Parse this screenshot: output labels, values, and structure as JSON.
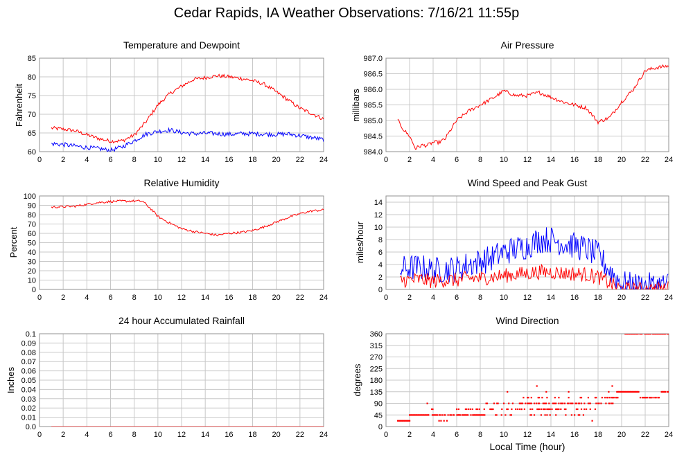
{
  "title": "Cedar Rapids, IA Weather Observations: 7/16/21 11:55p",
  "colors": {
    "red": "#ff0000",
    "blue": "#0000ff",
    "grid": "#c8c8c8",
    "frame": "#909090",
    "bg": "#ffffff"
  },
  "chart_data": [
    {
      "id": "temp",
      "type": "line",
      "title": "Temperature and Dewpoint",
      "ylabel": "Fahrenheit",
      "xlabel": "",
      "xlim": [
        0,
        24
      ],
      "ylim": [
        60,
        85
      ],
      "yticks": [
        "60",
        "65",
        "70",
        "75",
        "80",
        "85"
      ],
      "xticks": [
        "0",
        "2",
        "4",
        "6",
        "8",
        "10",
        "12",
        "14",
        "16",
        "18",
        "20",
        "22",
        "24"
      ],
      "grid": true,
      "series": [
        {
          "color": "red",
          "x": [
            1,
            2,
            3,
            4,
            5,
            6,
            7,
            8,
            9,
            10,
            11,
            12,
            13,
            14,
            15,
            16,
            17,
            18,
            19,
            20,
            21,
            22,
            23,
            24
          ],
          "y": [
            66.3,
            66,
            65.6,
            64.5,
            63.5,
            62.8,
            62.9,
            64.4,
            68,
            72.5,
            75.5,
            77.5,
            79.3,
            79.8,
            80.3,
            80,
            79.6,
            79,
            78,
            76,
            73.8,
            71.6,
            70.2,
            68.7
          ],
          "noise": 0.5
        },
        {
          "color": "blue",
          "x": [
            1,
            2,
            3,
            4,
            5,
            6,
            7,
            8,
            9,
            10,
            11,
            12,
            13,
            14,
            15,
            16,
            17,
            18,
            19,
            20,
            21,
            22,
            23,
            24
          ],
          "y": [
            62.1,
            61.9,
            61.5,
            61.1,
            60.8,
            60.3,
            61.3,
            62.9,
            64.7,
            65.4,
            65.8,
            65.1,
            64.8,
            64.9,
            64.8,
            64.6,
            64.8,
            64.8,
            64.7,
            64.6,
            64.7,
            64.3,
            63.8,
            63.2
          ],
          "noise": 0.6
        }
      ]
    },
    {
      "id": "pressure",
      "type": "line",
      "title": "Air Pressure",
      "ylabel": "millibars",
      "xlabel": "",
      "xlim": [
        0,
        24
      ],
      "ylim": [
        984.0,
        987.0
      ],
      "yticks": [
        "984.0",
        "984.5",
        "985.0",
        "985.5",
        "986.0",
        "986.5",
        "987.0"
      ],
      "xticks": [
        "0",
        "2",
        "4",
        "6",
        "8",
        "10",
        "12",
        "14",
        "16",
        "18",
        "20",
        "22",
        "24"
      ],
      "grid": true,
      "series": [
        {
          "color": "red",
          "x": [
            1,
            1.5,
            2,
            2.5,
            3,
            3.5,
            4,
            4.5,
            5,
            6,
            7,
            8,
            9,
            10,
            11,
            12,
            13,
            14,
            15,
            16,
            17,
            18,
            19,
            20,
            21,
            22,
            23,
            24
          ],
          "y": [
            985.0,
            984.7,
            984.5,
            984.1,
            984.2,
            984.2,
            984.3,
            984.3,
            984.4,
            985.0,
            985.3,
            985.5,
            985.7,
            985.95,
            985.8,
            985.8,
            985.9,
            985.75,
            985.6,
            985.5,
            985.4,
            984.95,
            985.1,
            985.6,
            986.0,
            986.6,
            986.7,
            986.75
          ],
          "noise": 0.06
        }
      ]
    },
    {
      "id": "humidity",
      "type": "line",
      "title": "Relative Humidity",
      "ylabel": "Percent",
      "xlabel": "",
      "xlim": [
        0,
        24
      ],
      "ylim": [
        0,
        100
      ],
      "yticks": [
        "0",
        "10",
        "20",
        "30",
        "40",
        "50",
        "60",
        "70",
        "80",
        "90",
        "100"
      ],
      "xticks": [
        "0",
        "2",
        "4",
        "6",
        "8",
        "10",
        "12",
        "14",
        "16",
        "18",
        "20",
        "22",
        "24"
      ],
      "grid": true,
      "series": [
        {
          "color": "red",
          "x": [
            1,
            2,
            3,
            4,
            5,
            6,
            7,
            8,
            8.7,
            9.5,
            10,
            11,
            12,
            13,
            14,
            15,
            16,
            17,
            18,
            19,
            20,
            21,
            22,
            23,
            24
          ],
          "y": [
            88,
            88.5,
            89,
            91,
            93,
            94,
            94.5,
            94.5,
            94.5,
            85,
            78,
            71,
            65,
            62,
            60,
            58,
            60,
            61,
            63,
            67,
            72,
            77,
            81,
            84,
            85
          ],
          "noise": 1.2
        }
      ]
    },
    {
      "id": "wind",
      "type": "line",
      "title": "Wind Speed and Peak Gust",
      "ylabel": "miles/hour",
      "xlabel": "",
      "xlim": [
        0,
        24
      ],
      "ylim": [
        0,
        15
      ],
      "yticks": [
        "0",
        "2",
        "4",
        "6",
        "8",
        "10",
        "12",
        "14"
      ],
      "xticks": [
        "0",
        "2",
        "4",
        "6",
        "8",
        "10",
        "12",
        "14",
        "16",
        "18",
        "20",
        "22",
        "24"
      ],
      "grid": true,
      "series": [
        {
          "color": "blue",
          "x": [
            1.2,
            2,
            3,
            4,
            5,
            6,
            7,
            8,
            9,
            10,
            11,
            12,
            13,
            14,
            15,
            16,
            17,
            18,
            19,
            20,
            21,
            22,
            23,
            24
          ],
          "y": [
            3.2,
            3.5,
            3.5,
            3,
            3.2,
            3.3,
            4,
            4.5,
            5,
            6,
            6.5,
            7,
            8,
            8,
            7.5,
            7,
            6.5,
            5.5,
            3,
            1,
            0.5,
            0.5,
            0.6,
            0.8
          ],
          "noise": 2.2
        },
        {
          "color": "red",
          "x": [
            1.2,
            2,
            3,
            4,
            5,
            6,
            7,
            8,
            9,
            10,
            11,
            12,
            13,
            14,
            15,
            16,
            17,
            18,
            19,
            20,
            21,
            22,
            23,
            24
          ],
          "y": [
            1.5,
            1.5,
            1.6,
            1.3,
            1.5,
            1.5,
            1.8,
            1.8,
            2,
            2.2,
            2.4,
            2.6,
            2.8,
            2.8,
            2.6,
            2.5,
            2.4,
            2,
            1,
            0,
            0,
            0,
            0,
            0.2
          ],
          "noise": 1.2
        }
      ]
    },
    {
      "id": "rain",
      "type": "line",
      "title": "24 hour Accumulated Rainfall",
      "ylabel": "Inches",
      "xlabel": "",
      "xlim": [
        0,
        24
      ],
      "ylim": [
        0,
        0.1
      ],
      "yticks": [
        "0.0",
        "0.01",
        "0.02",
        "0.03",
        "0.04",
        "0.05",
        "0.06",
        "0.07",
        "0.08",
        "0.09",
        "0.1"
      ],
      "xticks": [
        "0",
        "2",
        "4",
        "6",
        "8",
        "10",
        "12",
        "14",
        "16",
        "18",
        "20",
        "22",
        "24"
      ],
      "grid": true,
      "series": [
        {
          "color": "red",
          "x": [
            1,
            24
          ],
          "y": [
            0,
            0
          ],
          "noise": 0
        }
      ]
    },
    {
      "id": "direction",
      "type": "scatter",
      "title": "Wind Direction",
      "ylabel": "degrees",
      "xlabel": "Local Time (hour)",
      "xlim": [
        0,
        24
      ],
      "ylim": [
        0,
        360
      ],
      "yticks": [
        "0",
        "45",
        "90",
        "135",
        "180",
        "225",
        "270",
        "315",
        "360"
      ],
      "xticks": [
        "0",
        "2",
        "4",
        "6",
        "8",
        "10",
        "12",
        "14",
        "16",
        "18",
        "20",
        "22",
        "24"
      ],
      "grid": true,
      "segments": [
        {
          "x0": 1.0,
          "x1": 2.0,
          "y": 22.5,
          "density": 1.0
        },
        {
          "x0": 2.0,
          "x1": 3.6,
          "y": 45,
          "density": 1.0
        },
        {
          "x0": 3.6,
          "x1": 6.2,
          "y": 45,
          "density": 0.65
        },
        {
          "x0": 4.5,
          "x1": 5.3,
          "y": 22.5,
          "density": 0.4
        },
        {
          "x0": 3.8,
          "x1": 4.0,
          "y": 67.5,
          "density": 0.8
        },
        {
          "x0": 6.2,
          "x1": 8.5,
          "y": 45,
          "density": 0.75
        },
        {
          "x0": 6.0,
          "x1": 8.5,
          "y": 67.5,
          "density": 0.3
        },
        {
          "x0": 8.5,
          "x1": 11.5,
          "y": 90,
          "density": 0.45
        },
        {
          "x0": 8.5,
          "x1": 11.5,
          "y": 67.5,
          "density": 0.4
        },
        {
          "x0": 8.8,
          "x1": 11.0,
          "y": 45,
          "density": 0.25
        },
        {
          "x0": 11.5,
          "x1": 18.5,
          "y": 90,
          "density": 0.55
        },
        {
          "x0": 11.5,
          "x1": 18.5,
          "y": 67.5,
          "density": 0.35
        },
        {
          "x0": 11.5,
          "x1": 18.5,
          "y": 112.5,
          "density": 0.2
        },
        {
          "x0": 12.0,
          "x1": 17.0,
          "y": 45,
          "density": 0.18
        },
        {
          "x0": 18.5,
          "x1": 19.7,
          "y": 112.5,
          "density": 0.6
        },
        {
          "x0": 18.5,
          "x1": 19.3,
          "y": 90,
          "density": 0.5
        },
        {
          "x0": 19.6,
          "x1": 21.5,
          "y": 135,
          "density": 1.0
        },
        {
          "x0": 20.3,
          "x1": 24.0,
          "y": 360,
          "density": 0.9
        },
        {
          "x0": 21.5,
          "x1": 22.5,
          "y": 112.5,
          "density": 0.8
        },
        {
          "x0": 22.5,
          "x1": 23.3,
          "y": 112.5,
          "density": 0.6
        },
        {
          "x0": 23.3,
          "x1": 24.0,
          "y": 135,
          "density": 0.9
        }
      ],
      "points": [
        {
          "x": 3.5,
          "y": 90
        },
        {
          "x": 10.3,
          "y": 135
        },
        {
          "x": 12.8,
          "y": 157.5
        },
        {
          "x": 13.6,
          "y": 135
        },
        {
          "x": 15.5,
          "y": 135
        },
        {
          "x": 17.5,
          "y": 22.5
        },
        {
          "x": 19.2,
          "y": 157.5
        },
        {
          "x": 18.9,
          "y": 135
        }
      ]
    }
  ]
}
